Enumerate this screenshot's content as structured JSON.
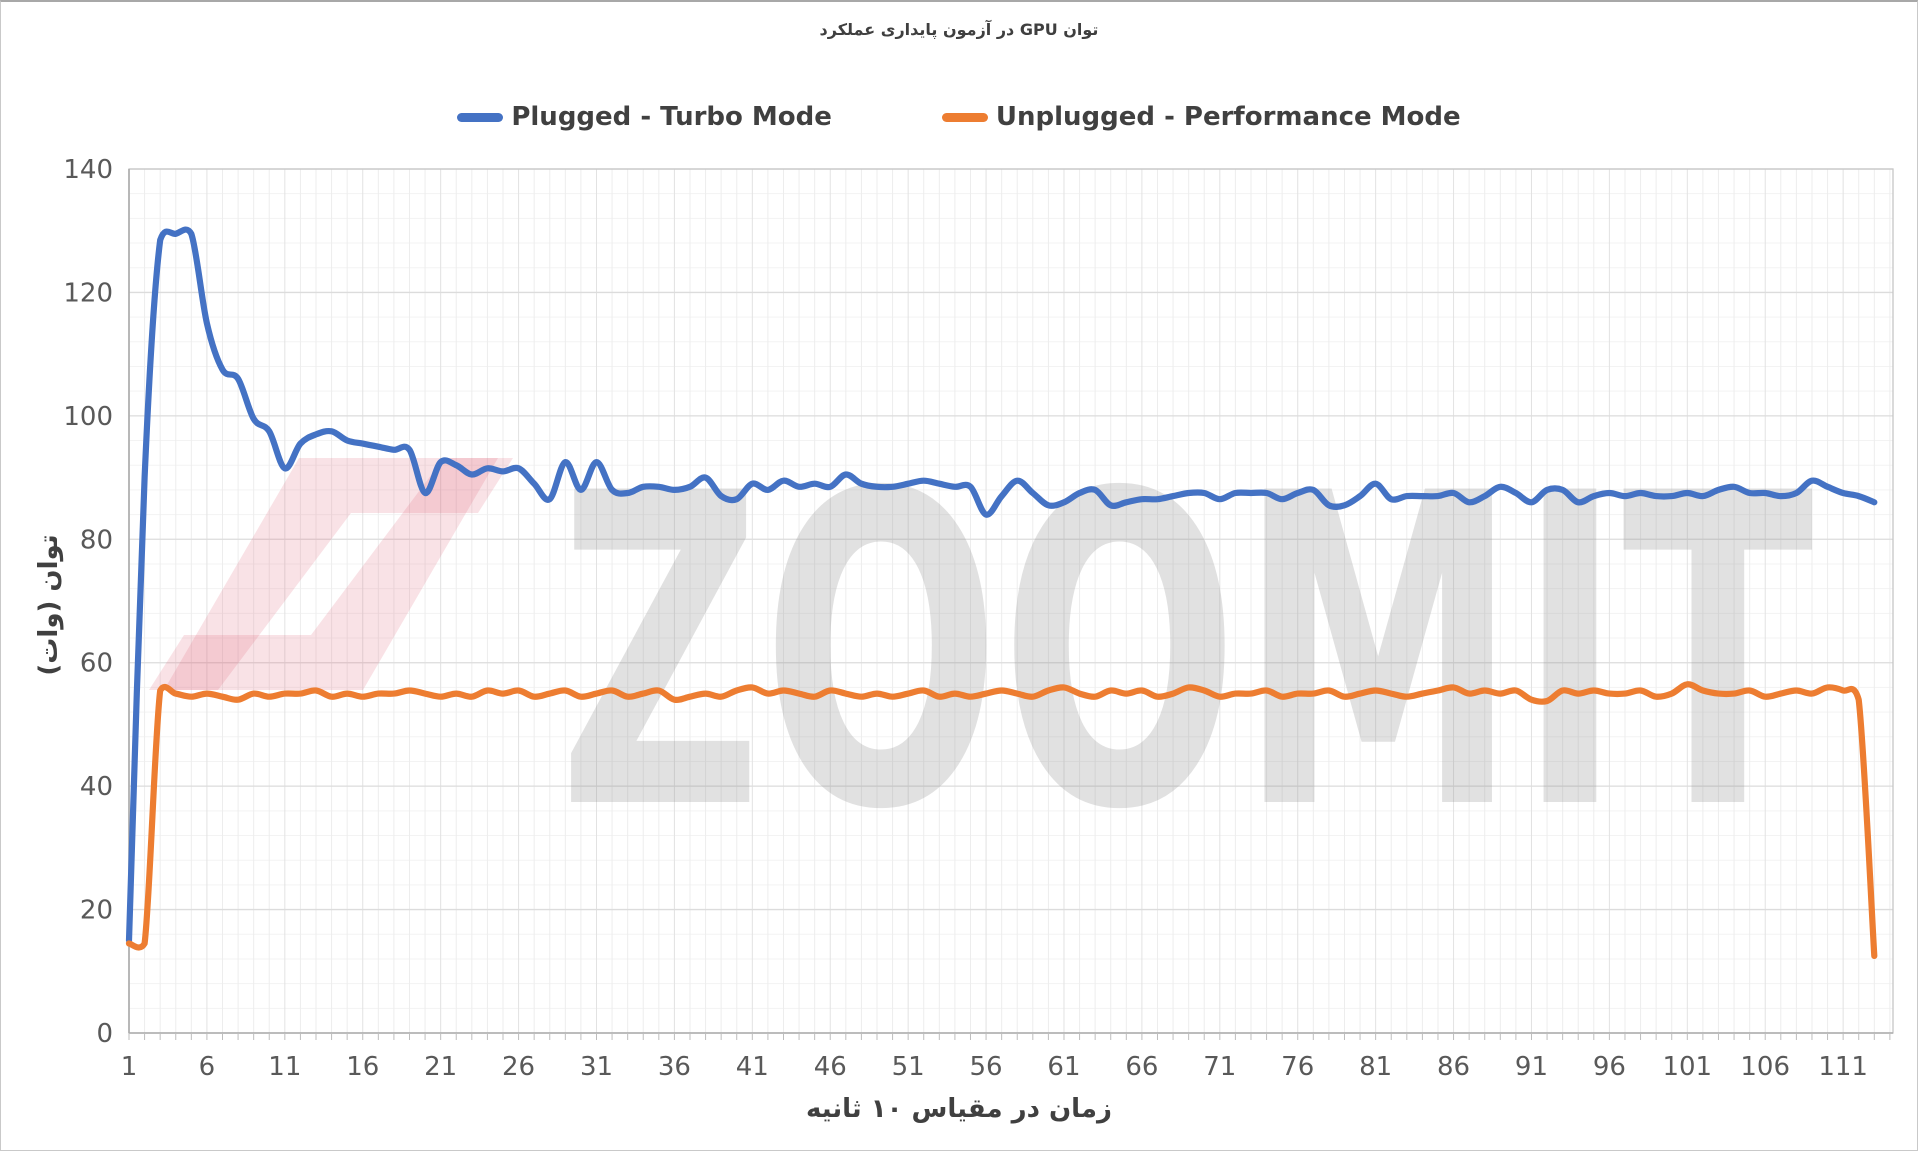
{
  "title": "توان GPU در آزمون پایداری عملکرد",
  "legend": [
    {
      "label": "Plugged - Turbo Mode",
      "color": "#4472C4"
    },
    {
      "label": "Unplugged - Performance Mode",
      "color": "#ED7D31"
    }
  ],
  "axes": {
    "y": {
      "title": "توان (وات)",
      "min": 0,
      "max": 140,
      "tick_step": 20,
      "minor_step": 4
    },
    "x": {
      "title": "زمان در مقیاس ۱۰ ثانیه",
      "tick_start": 1,
      "tick_step": 5,
      "tick_end": 111
    }
  },
  "watermark": {
    "text": "ZOOMIT",
    "text_color": "#8a8a8a",
    "logo_color": "#e05c74"
  },
  "colors": {
    "grid_major": "#dcdcdc",
    "grid_minor": "#f3f3f3",
    "grid_vertical": "#ededed",
    "grid_vertical_major": "#e2e2e2",
    "axis_line": "#ababab",
    "tick_label": "#595959"
  },
  "chart_data": {
    "type": "line",
    "title": "توان GPU در آزمون پایداری عملکرد",
    "xlabel": "زمان در مقیاس ۱۰ ثانیه",
    "ylabel": "توان (وات)",
    "ylim": [
      0,
      140
    ],
    "x_range": [
      1,
      113
    ],
    "grid": true,
    "legend_position": "top",
    "x": [
      1,
      2,
      3,
      4,
      5,
      6,
      7,
      8,
      9,
      10,
      11,
      12,
      13,
      14,
      15,
      16,
      17,
      18,
      19,
      20,
      21,
      22,
      23,
      24,
      25,
      26,
      27,
      28,
      29,
      30,
      31,
      32,
      33,
      34,
      35,
      36,
      37,
      38,
      39,
      40,
      41,
      42,
      43,
      44,
      45,
      46,
      47,
      48,
      49,
      50,
      51,
      52,
      53,
      54,
      55,
      56,
      57,
      58,
      59,
      60,
      61,
      62,
      63,
      64,
      65,
      66,
      67,
      68,
      69,
      70,
      71,
      72,
      73,
      74,
      75,
      76,
      77,
      78,
      79,
      80,
      81,
      82,
      83,
      84,
      85,
      86,
      87,
      88,
      89,
      90,
      91,
      92,
      93,
      94,
      95,
      96,
      97,
      98,
      99,
      100,
      101,
      102,
      103,
      104,
      105,
      106,
      107,
      108,
      109,
      110,
      111,
      112,
      113
    ],
    "series": [
      {
        "name": "Plugged - Turbo Mode",
        "color": "#4472C4",
        "values": [
          15,
          90,
          128.5,
          129.5,
          129.5,
          115,
          107.5,
          106,
          99.5,
          97.5,
          91.5,
          95.5,
          97,
          97.5,
          96,
          95.5,
          95,
          94.5,
          94.5,
          87.5,
          92.5,
          92,
          90.5,
          91.5,
          91,
          91.5,
          89,
          86.5,
          92.5,
          88,
          92.5,
          88,
          87.5,
          88.5,
          88.5,
          88,
          88.5,
          90,
          87,
          86.5,
          89,
          88,
          89.5,
          88.5,
          89,
          88.5,
          90.5,
          89,
          88.5,
          88.5,
          89,
          89.5,
          89,
          88.5,
          88.5,
          84,
          87,
          89.5,
          87.5,
          85.5,
          86,
          87.5,
          88,
          85.5,
          86,
          86.5,
          86.5,
          87,
          87.5,
          87.5,
          86.5,
          87.5,
          87.5,
          87.5,
          86.5,
          87.5,
          88,
          85.5,
          85.5,
          87,
          89,
          86.5,
          87,
          87,
          87,
          87.5,
          86,
          87,
          88.5,
          87.5,
          86,
          88,
          88,
          86,
          87,
          87.5,
          87,
          87.5,
          87,
          87,
          87.5,
          87,
          88,
          88.5,
          87.5,
          87.5,
          87,
          87.5,
          89.5,
          88.5,
          87.5,
          87,
          86
        ]
      },
      {
        "name": "Unplugged - Performance Mode",
        "color": "#ED7D31",
        "values": [
          14.5,
          14.5,
          55.5,
          55,
          54.5,
          55,
          54.5,
          54,
          55,
          54.5,
          55,
          55,
          55.5,
          54.5,
          55,
          54.5,
          55,
          55,
          55.5,
          55,
          54.5,
          55,
          54.5,
          55.5,
          55,
          55.5,
          54.5,
          55,
          55.5,
          54.5,
          55,
          55.5,
          54.5,
          55,
          55.5,
          54,
          54.5,
          55,
          54.5,
          55.5,
          56,
          55,
          55.5,
          55,
          54.5,
          55.5,
          55,
          54.5,
          55,
          54.5,
          55,
          55.5,
          54.5,
          55,
          54.5,
          55,
          55.5,
          55,
          54.5,
          55.5,
          56,
          55,
          54.5,
          55.5,
          55,
          55.5,
          54.5,
          55,
          56,
          55.5,
          54.5,
          55,
          55,
          55.5,
          54.5,
          55,
          55,
          55.5,
          54.5,
          55,
          55.5,
          55,
          54.5,
          55,
          55.5,
          56,
          55,
          55.5,
          55,
          55.5,
          54,
          53.8,
          55.5,
          55,
          55.5,
          55,
          55,
          55.5,
          54.5,
          55,
          56.5,
          55.5,
          55,
          55,
          55.5,
          54.5,
          55,
          55.5,
          55,
          56,
          55.5,
          54,
          12.5
        ]
      }
    ]
  }
}
